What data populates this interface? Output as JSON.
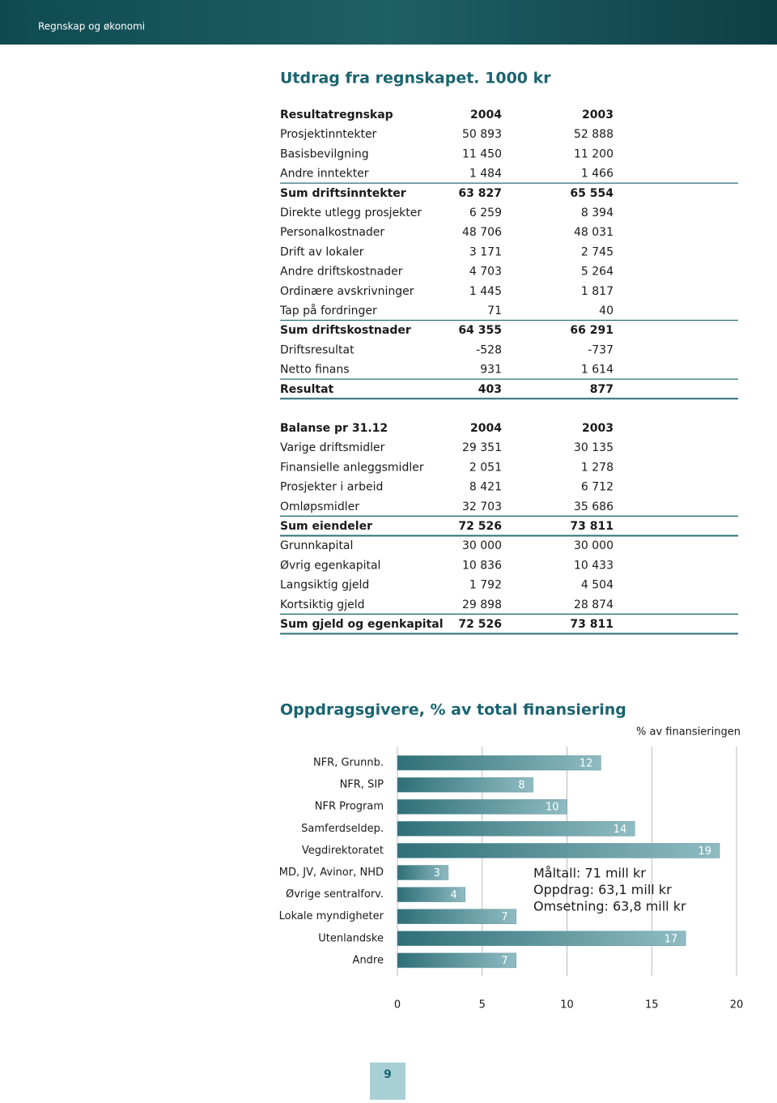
{
  "header": {
    "section": "Regnskap og økonomi"
  },
  "title": "Utdrag fra regnskapet. 1000 kr",
  "tables": [
    {
      "header": [
        "Resultatregnskap",
        "2004",
        "2003"
      ],
      "rows": [
        {
          "cells": [
            "Prosjektinntekter",
            "50 893",
            "52 888"
          ]
        },
        {
          "cells": [
            "Basisbevilgning",
            "11 450",
            "11 200"
          ]
        },
        {
          "cells": [
            "Andre inntekter",
            "1 484",
            "1 466"
          ],
          "rule_below": true
        },
        {
          "cells": [
            "Sum driftsinntekter",
            "63 827",
            "65 554"
          ],
          "bold": true
        },
        {
          "cells": [
            "Direkte utlegg prosjekter",
            "6 259",
            "8 394"
          ]
        },
        {
          "cells": [
            "Personalkostnader",
            "48 706",
            "48 031"
          ]
        },
        {
          "cells": [
            "Drift av lokaler",
            "3 171",
            "2 745"
          ]
        },
        {
          "cells": [
            "Andre driftskostnader",
            "4 703",
            "5 264"
          ]
        },
        {
          "cells": [
            "Ordinære avskrivninger",
            "1 445",
            "1 817"
          ]
        },
        {
          "cells": [
            "Tap på fordringer",
            "71",
            "40"
          ],
          "rule_below": true
        },
        {
          "cells": [
            "Sum driftskostnader",
            "64 355",
            "66 291"
          ],
          "bold": true
        },
        {
          "cells": [
            "Driftsresultat",
            "-528",
            "-737"
          ]
        },
        {
          "cells": [
            "Netto finans",
            "931",
            "1 614"
          ],
          "rule_below": true
        },
        {
          "cells": [
            "Resultat",
            "403",
            "877"
          ],
          "bold": true,
          "rule_below": true
        }
      ]
    },
    {
      "header": [
        "Balanse pr 31.12",
        "2004",
        "2003"
      ],
      "rows": [
        {
          "cells": [
            "Varige driftsmidler",
            "29 351",
            "30 135"
          ]
        },
        {
          "cells": [
            "Finansielle anleggsmidler",
            "2 051",
            "1 278"
          ]
        },
        {
          "cells": [
            "Prosjekter i arbeid",
            "8 421",
            "6 712"
          ]
        },
        {
          "cells": [
            "Omløpsmidler",
            "32 703",
            "35 686"
          ],
          "rule_below": true
        },
        {
          "cells": [
            "Sum eiendeler",
            "72 526",
            "73 811"
          ],
          "bold": true,
          "rule_below": true
        },
        {
          "cells": [
            "Grunnkapital",
            "30 000",
            "30 000"
          ]
        },
        {
          "cells": [
            "Øvrig egenkapital",
            "10 836",
            "10 433"
          ]
        },
        {
          "cells": [
            "Langsiktig gjeld",
            "1 792",
            "4 504"
          ]
        },
        {
          "cells": [
            "Kortsiktig gjeld",
            "29 898",
            "28 874"
          ],
          "rule_below": true
        },
        {
          "cells": [
            "Sum gjeld og egenkapital",
            "72 526",
            "73 811"
          ],
          "bold": true,
          "rule_below": true
        }
      ]
    }
  ],
  "chart": {
    "type": "bar",
    "title": "Oppdragsgivere, % av total finansiering",
    "x_label": "% av finansieringen",
    "categories": [
      "NFR, Grunnb.",
      "NFR, SIP",
      "NFR Program",
      "Samferdseldep.",
      "Vegdirektoratet",
      "MD, JV, Avinor, NHD",
      "Øvrige sentralforv.",
      "Lokale myndigheter",
      "Utenlandske",
      "Andre"
    ],
    "values": [
      12,
      8,
      10,
      14,
      19,
      3,
      4,
      7,
      17,
      7
    ],
    "color": "#5d939b",
    "xlim": [
      0,
      20
    ],
    "xticks": [
      0,
      5,
      10,
      15,
      20
    ],
    "grid": true,
    "annotations": [
      "Måltall: 71 mill kr",
      "Oppdrag: 63,1 mill kr",
      "Omsetning: 63,8 mill kr"
    ]
  },
  "page_number": "9"
}
